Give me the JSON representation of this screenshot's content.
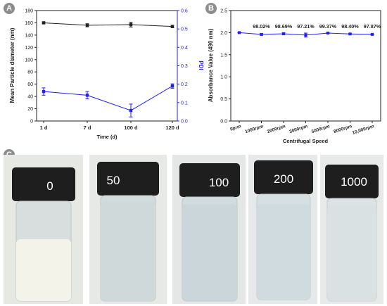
{
  "panel_labels": {
    "a": "A",
    "b": "B",
    "c": "C"
  },
  "chart_data": [
    {
      "type": "line",
      "categories": [
        "1 d",
        "7 d",
        "100 d",
        "120 d"
      ],
      "xlabel": "Time (d)",
      "ylabel": "Mean Particle diameter (nm)",
      "y2label": "PDI",
      "ylim": [
        0,
        180
      ],
      "y2lim": [
        0,
        0.6
      ],
      "yticks": [
        0,
        20,
        40,
        60,
        80,
        100,
        120,
        140,
        160,
        180
      ],
      "y2ticks": [
        0.0,
        0.1,
        0.2,
        0.3,
        0.4,
        0.5,
        0.6
      ],
      "series": [
        {
          "axis": "left",
          "color": "#222222",
          "values": [
            160,
            156,
            157,
            154
          ],
          "errors": [
            1.5,
            2.5,
            4,
            2
          ]
        },
        {
          "axis": "right",
          "color": "#1f1fff",
          "values": [
            0.16,
            0.14,
            0.057,
            0.19
          ],
          "errors": [
            0.02,
            0.02,
            0.035,
            0.012
          ]
        }
      ]
    },
    {
      "type": "line",
      "categories": [
        "0prm",
        "1000rpm",
        "2000rpm",
        "3000rpm",
        "5000rpm",
        "8000rpm",
        "10,000rpm"
      ],
      "xlabel": "Centrifugal Speed",
      "ylabel": "Absorbance Value (490 nm)",
      "ylim": [
        0,
        2.5
      ],
      "yticks": [
        "0.0",
        "0.5",
        "1.0",
        "1.5",
        "2.0",
        "2.5"
      ],
      "series": [
        {
          "color": "#1f1fff",
          "values": [
            2.0,
            1.96,
            1.975,
            1.945,
            1.99,
            1.97,
            1.96
          ],
          "errors": [
            0.01,
            0.02,
            0.025,
            0.045,
            0.01,
            0.01,
            0.01
          ]
        }
      ],
      "data_labels": [
        "",
        "98.02%",
        "98.69%",
        "97.21%",
        "99.37%",
        "98.40%",
        "97.87%"
      ]
    }
  ],
  "vials": [
    {
      "label": "0",
      "liquid": "milky"
    },
    {
      "label": "50",
      "liquid": "translucent"
    },
    {
      "label": "100",
      "liquid": "translucent"
    },
    {
      "label": "200",
      "liquid": "clear"
    },
    {
      "label": "1000",
      "liquid": "clear"
    }
  ],
  "colors": {
    "blue_series": "#1f1fff",
    "black_series": "#222222",
    "badge": "#8c8c8c",
    "cap": "#1e1e1e"
  }
}
